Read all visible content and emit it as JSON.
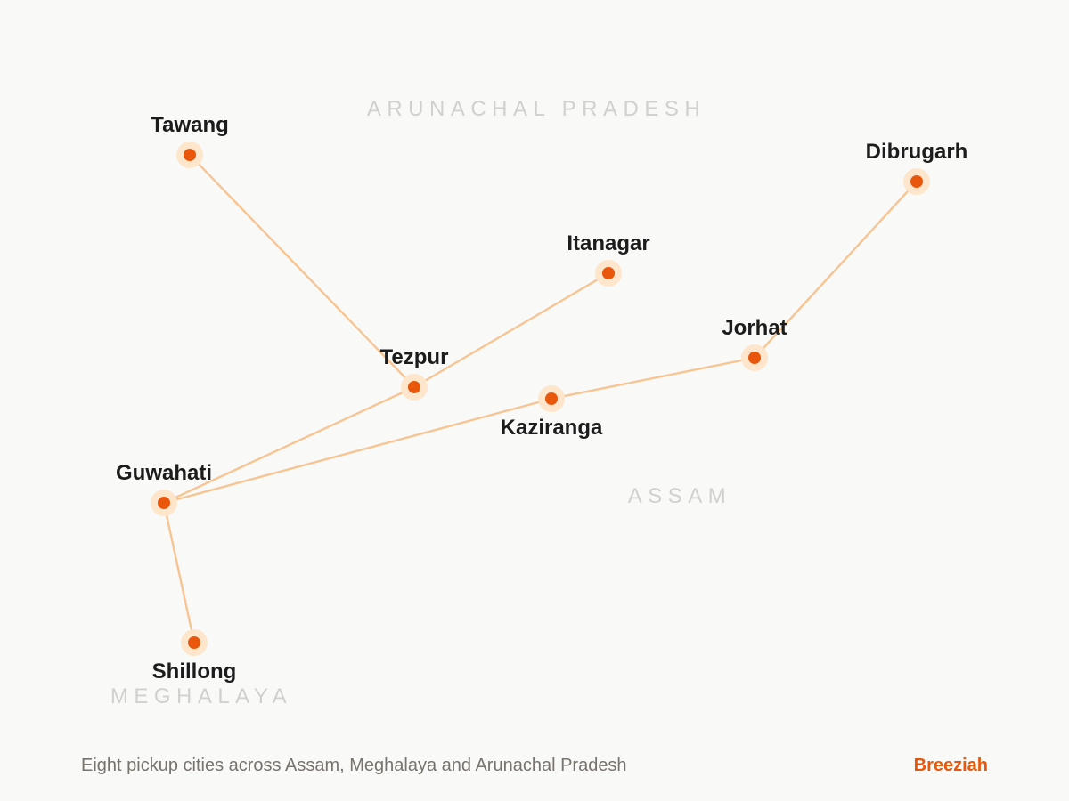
{
  "brand": {
    "name": "Breeziah",
    "color": "#e8570c"
  },
  "caption": "Eight pickup cities across Assam, Meghalaya and Arunachal Pradesh",
  "colors": {
    "route": "#f7c594",
    "marker": "#e8570c",
    "marker_halo": "#fde6cc",
    "region_label": "#d0d0cd"
  },
  "regions": [
    {
      "id": "arunachal",
      "name": "ARUNACHAL PRADESH"
    },
    {
      "id": "assam",
      "name": "ASSAM"
    },
    {
      "id": "meghalaya",
      "name": "MEGHALAYA"
    }
  ],
  "cities": [
    {
      "id": "tawang",
      "name": "Tawang"
    },
    {
      "id": "dibrugarh",
      "name": "Dibrugarh"
    },
    {
      "id": "itanagar",
      "name": "Itanagar"
    },
    {
      "id": "jorhat",
      "name": "Jorhat"
    },
    {
      "id": "tezpur",
      "name": "Tezpur"
    },
    {
      "id": "kaziranga",
      "name": "Kaziranga"
    },
    {
      "id": "guwahati",
      "name": "Guwahati"
    },
    {
      "id": "shillong",
      "name": "Shillong"
    }
  ],
  "routes": [
    {
      "from": "guwahati",
      "to": "shillong"
    },
    {
      "from": "guwahati",
      "to": "tezpur"
    },
    {
      "from": "tezpur",
      "to": "tawang"
    },
    {
      "from": "tezpur",
      "to": "itanagar"
    },
    {
      "from": "guwahati",
      "to": "kaziranga"
    },
    {
      "from": "kaziranga",
      "to": "jorhat"
    },
    {
      "from": "jorhat",
      "to": "dibrugarh"
    }
  ]
}
